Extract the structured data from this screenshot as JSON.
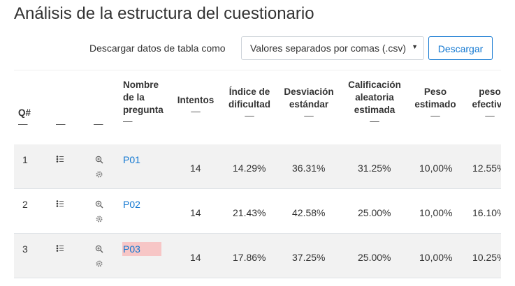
{
  "page": {
    "title": "Análisis de la estructura del cuestionario"
  },
  "download": {
    "label": "Descargar datos de tabla como",
    "selected_format": "Valores separados por comas (.csv)",
    "button_label": "Descargar"
  },
  "table": {
    "headers": {
      "qnum": "Q#",
      "name": [
        "Nombre",
        "de la",
        "pregunta"
      ],
      "attempts": "Intentos",
      "facility": [
        "Índice de",
        "dificultad"
      ],
      "sd": [
        "Desviación",
        "estándar"
      ],
      "random": [
        "Calificación",
        "aleatoria",
        "estimada"
      ],
      "weight": [
        "Peso",
        "estimado"
      ],
      "effective": [
        "peso",
        "efectivo"
      ],
      "sort_mark": "—"
    },
    "rows": [
      {
        "qnum": "1",
        "name": "P01",
        "attempts": "14",
        "facility": "14.29%",
        "sd": "36.31%",
        "random": "31.25%",
        "weight": "10,00%",
        "effective": "12.55%"
      },
      {
        "qnum": "2",
        "name": "P02",
        "attempts": "14",
        "facility": "21.43%",
        "sd": "42.58%",
        "random": "25.00%",
        "weight": "10,00%",
        "effective": "16.10%"
      },
      {
        "qnum": "3",
        "name": "P03",
        "attempts": "14",
        "facility": "17.86%",
        "sd": "37.25%",
        "random": "25.00%",
        "weight": "10,00%",
        "effective": "10.25%"
      }
    ]
  },
  "icons": {
    "row_list": "list-icon",
    "row_preview": "zoom-icon",
    "row_settings": "gear-icon"
  },
  "colors": {
    "link": "#1177d1",
    "highlight": "#f7c6c6",
    "row_shade": "#f2f2f2"
  }
}
